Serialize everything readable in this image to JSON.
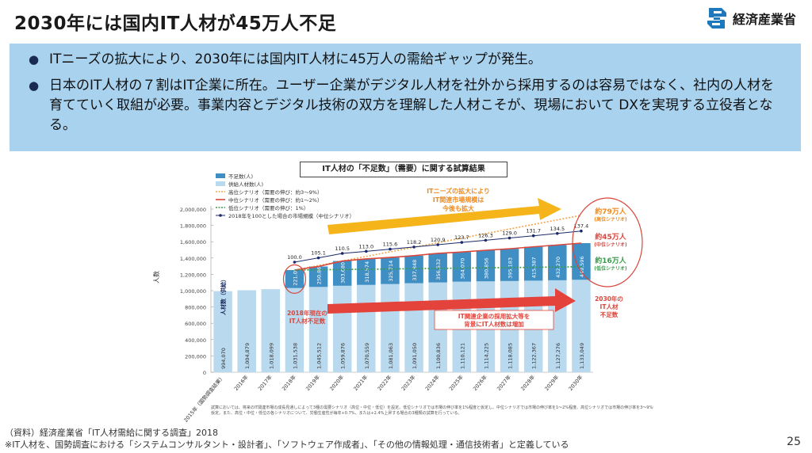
{
  "title": "2030年には国内IT人材が45万人不足",
  "logo": {
    "text": "経済産業省",
    "icon": "meti-s-logo-icon",
    "color": "#1e78be"
  },
  "bullets": [
    "ITニーズの拡大により、2030年には国内IT人材に45万人の需給ギャップが発生。",
    "日本のIT人材の７割はIT企業に所在。ユーザー企業がデジタル人材を社外から採用するのは容易ではなく、社内の人材を育てていく取組が必要。事業内容とデジタル技術の双方を理解した人材こそが、現場において DXを実現する立役者となる。"
  ],
  "chart_data": {
    "type": "bar",
    "title": "IT人材の「不足数」（需要）に関する試算結果",
    "categories": [
      "2015年(国勢調査結果)",
      "2016年",
      "2017年",
      "2018年",
      "2019年",
      "2020年",
      "2021年",
      "2022年",
      "2023年",
      "2024年",
      "2025年",
      "2026年",
      "2027年",
      "2028年",
      "2029年",
      "2030年"
    ],
    "category_labels": [
      "2015年（国勢調査結果）",
      "2016年",
      "2017年",
      "2018年",
      "2019年",
      "2020年",
      "2021年",
      "2022年",
      "2023年",
      "2024年",
      "2025年",
      "2026年",
      "2027年",
      "2028年",
      "2029年",
      "2030年"
    ],
    "ylabel": "人数",
    "ylim": [
      0,
      2000000
    ],
    "yticks": [
      "0",
      "200,000",
      "400,000",
      "600,000",
      "800,000",
      "1,000,000",
      "1,200,000",
      "1,400,000",
      "1,600,000",
      "1,800,000",
      "2,000,000"
    ],
    "supply_label": "人材数（供給）",
    "series": [
      {
        "name": "供給人材数(人)",
        "color": "#b9d9ef",
        "values": [
          994070,
          1004879,
          1018099,
          1031538,
          1045512,
          1059876,
          1070559,
          1081063,
          1091050,
          1100836,
          1110121,
          1114225,
          1118085,
          1122367,
          1127276,
          1133049
        ],
        "labels": [
          "994,070",
          "1,004,879",
          "1,018,099",
          "1,031,538",
          "1,045,512",
          "1,059,876",
          "1,070,559",
          "1,081,063",
          "1,091,050",
          "1,100,836",
          "1,110,121",
          "1,114,225",
          "1,118,085",
          "1,122,367",
          "1,127,276",
          "1,133,049"
        ]
      },
      {
        "name": "不足数(人)",
        "color": "#3f8fc5",
        "values": [
          null,
          null,
          null,
          221000,
          250865,
          303680,
          318574,
          325714,
          337848,
          356532,
          364070,
          380856,
          395183,
          415387,
          432270,
          449596
        ],
        "labels": [
          "",
          "",
          "",
          "221,000",
          "250,865",
          "303,680",
          "318,574",
          "325,714",
          "337,848",
          "356,532",
          "364,070",
          "380,856",
          "395,183",
          "415,387",
          "432,270",
          "449,596"
        ]
      }
    ],
    "line_series": [
      {
        "name": "2018年を100とした場合の市場規模（中位シナリオ）",
        "color": "#1b2a6b",
        "values": [
          null,
          null,
          null,
          100.0,
          105.1,
          110.5,
          113.0,
          115.6,
          118.2,
          120.9,
          123.7,
          126.3,
          129.0,
          131.7,
          134.5,
          137.4
        ],
        "labels": [
          "",
          "",
          "",
          "100.0",
          "105.1",
          "110.5",
          "113.0",
          "115.6",
          "118.2",
          "120.9",
          "123.7",
          "126.3",
          "129.0",
          "131.7",
          "134.5",
          "137.4"
        ]
      }
    ],
    "legend": [
      {
        "label": "不足数(人)",
        "kind": "bar",
        "color": "#3f8fc5"
      },
      {
        "label": "供給人材数(人)",
        "kind": "bar",
        "color": "#b9d9ef"
      },
      {
        "label": "高位シナリオ（需要の伸び：約3～9%）",
        "kind": "dotted",
        "color": "#f0a64a"
      },
      {
        "label": "中位シナリオ（需要の伸び：約1～2%）",
        "kind": "line",
        "color": "#d9463c"
      },
      {
        "label": "低位シナリオ（需要の伸び：1%）",
        "kind": "dotted",
        "color": "#3a9a4a"
      },
      {
        "label": "2018年を100とした場合の市場規模（中位シナリオ）",
        "kind": "marker",
        "color": "#1b2a6b"
      }
    ],
    "legend_position": "top-left",
    "annotations": {
      "it_needs": "ITニーズの拡大により IT関連市場規模は 今後も拡大",
      "hiring": "IT関連企業の採用拡大等を 背景にIT人材数は増加",
      "shortage_2018": "2018年現在の IT人材不足数",
      "shortage_2030": "2030年の IT人材 不足数",
      "high": "約79万人",
      "high_sub": "(高位シナリオ)",
      "mid": "約45万人",
      "mid_sub": "(中位シナリオ)",
      "low": "約16万人",
      "low_sub": "(低位シナリオ)"
    },
    "footnote": "試算においては、将来のIT関連市場の成長見通しによって3種の需要シナリオ（高位・中位・低位）を設定。低位シナリオでは市場の伸び率を1%程度と仮定し、中位シナリオでは市場の伸び率を1～2%程度、高位シナリオでは市場の伸び率を3～9%程度と仮定。また、高位・中位・低位の各シナリオについて、労働生産性が毎年+0.7%、または+2.4%上昇する場合の3種類の試算を行っている。"
  },
  "source": "（資料）経済産業省「IT人材需給に関する調査」2018",
  "note": "※IT人材を、国勢調査における「システムコンサルタント・設計者」、「ソフトウェア作成者」、「その他の情報処理・通信技術者」と定義している",
  "page_number": "25"
}
